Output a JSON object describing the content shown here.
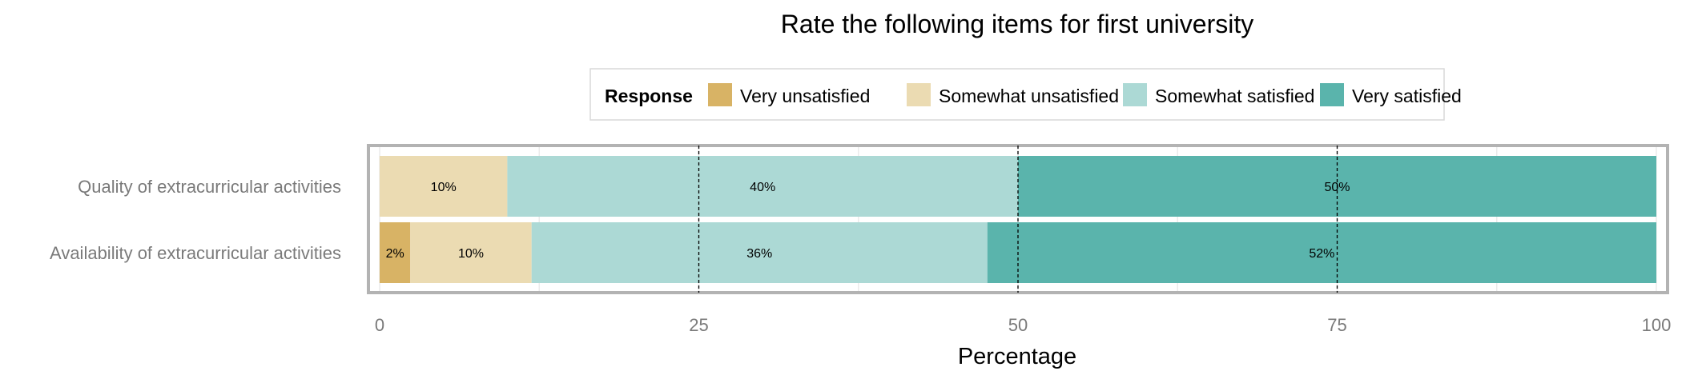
{
  "chart_data": {
    "type": "bar",
    "orientation": "horizontal",
    "stacked": true,
    "title": "Rate the following items for first university",
    "xlabel": "Percentage",
    "ylabel": "",
    "xlim": [
      0,
      100
    ],
    "x_ticks": [
      "0",
      "25",
      "50",
      "75",
      "100"
    ],
    "x_tick_values": [
      0,
      25,
      50,
      75,
      100
    ],
    "grid": true,
    "legend": {
      "title": "Response",
      "placement": "top"
    },
    "categories": [
      "Quality of extracurricular activities",
      "Availability of extracurricular activities"
    ],
    "series": [
      {
        "name": "Very unsatisfied",
        "color": "#d8b365",
        "values": [
          0,
          2.4
        ],
        "labels": [
          "",
          "2%"
        ]
      },
      {
        "name": "Somewhat unsatisfied",
        "color": "#ebdbb2",
        "values": [
          10,
          9.5
        ],
        "labels": [
          "10%",
          "10%"
        ]
      },
      {
        "name": "Somewhat satisfied",
        "color": "#acd9d5",
        "values": [
          40,
          35.7
        ],
        "labels": [
          "40%",
          "36%"
        ]
      },
      {
        "name": "Very satisfied",
        "color": "#5ab4ac",
        "values": [
          50,
          52.4
        ],
        "labels": [
          "50%",
          "52%"
        ]
      }
    ]
  }
}
